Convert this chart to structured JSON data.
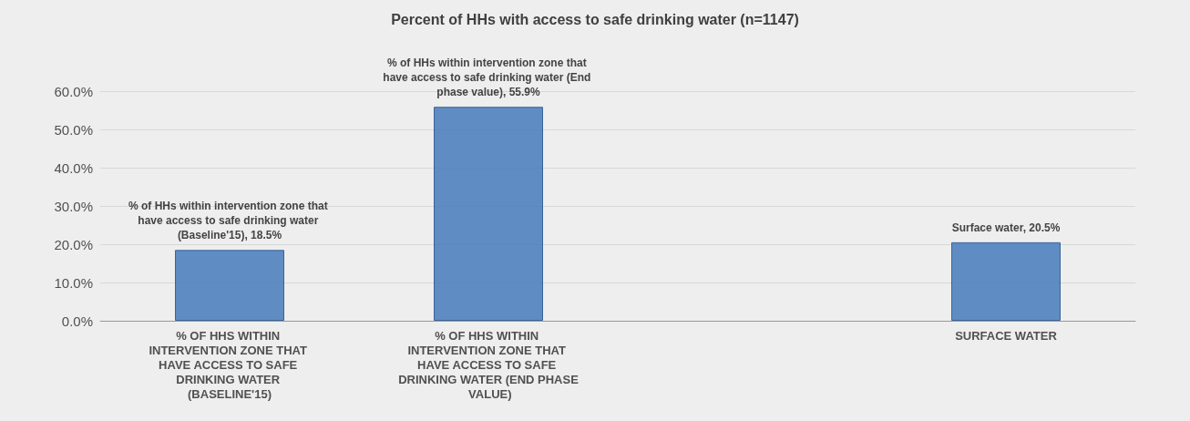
{
  "chart_data": {
    "type": "bar",
    "title": "Percent of HHs with access to safe drinking water (n=1147)",
    "categories": [
      "% OF HHS WITHIN INTERVENTION ZONE THAT HAVE ACCESS TO SAFE DRINKING WATER (BASELINE'15)",
      "% OF HHS WITHIN INTERVENTION ZONE THAT HAVE ACCESS TO SAFE DRINKING WATER (END PHASE VALUE)",
      null,
      "SURFACE WATER"
    ],
    "values": [
      18.5,
      55.9,
      null,
      20.5
    ],
    "value_labels": [
      "% of HHs within intervention zone that have access to safe drinking water (Baseline'15), 18.5%",
      "% of HHs within intervention zone that have access to safe drinking water (End phase value), 55.9%",
      null,
      "Surface water, 20.5%"
    ],
    "color": "#4f81bd",
    "ylim": [
      0,
      60
    ],
    "yticks": [
      {
        "value": 0,
        "label": "0.0%"
      },
      {
        "value": 10,
        "label": "10.0%"
      },
      {
        "value": 20,
        "label": "20.0%"
      },
      {
        "value": 30,
        "label": "30.0%"
      },
      {
        "value": 40,
        "label": "40.0%"
      },
      {
        "value": 50,
        "label": "50.0%"
      },
      {
        "value": 60,
        "label": "60.0%"
      }
    ],
    "grid": "y"
  }
}
